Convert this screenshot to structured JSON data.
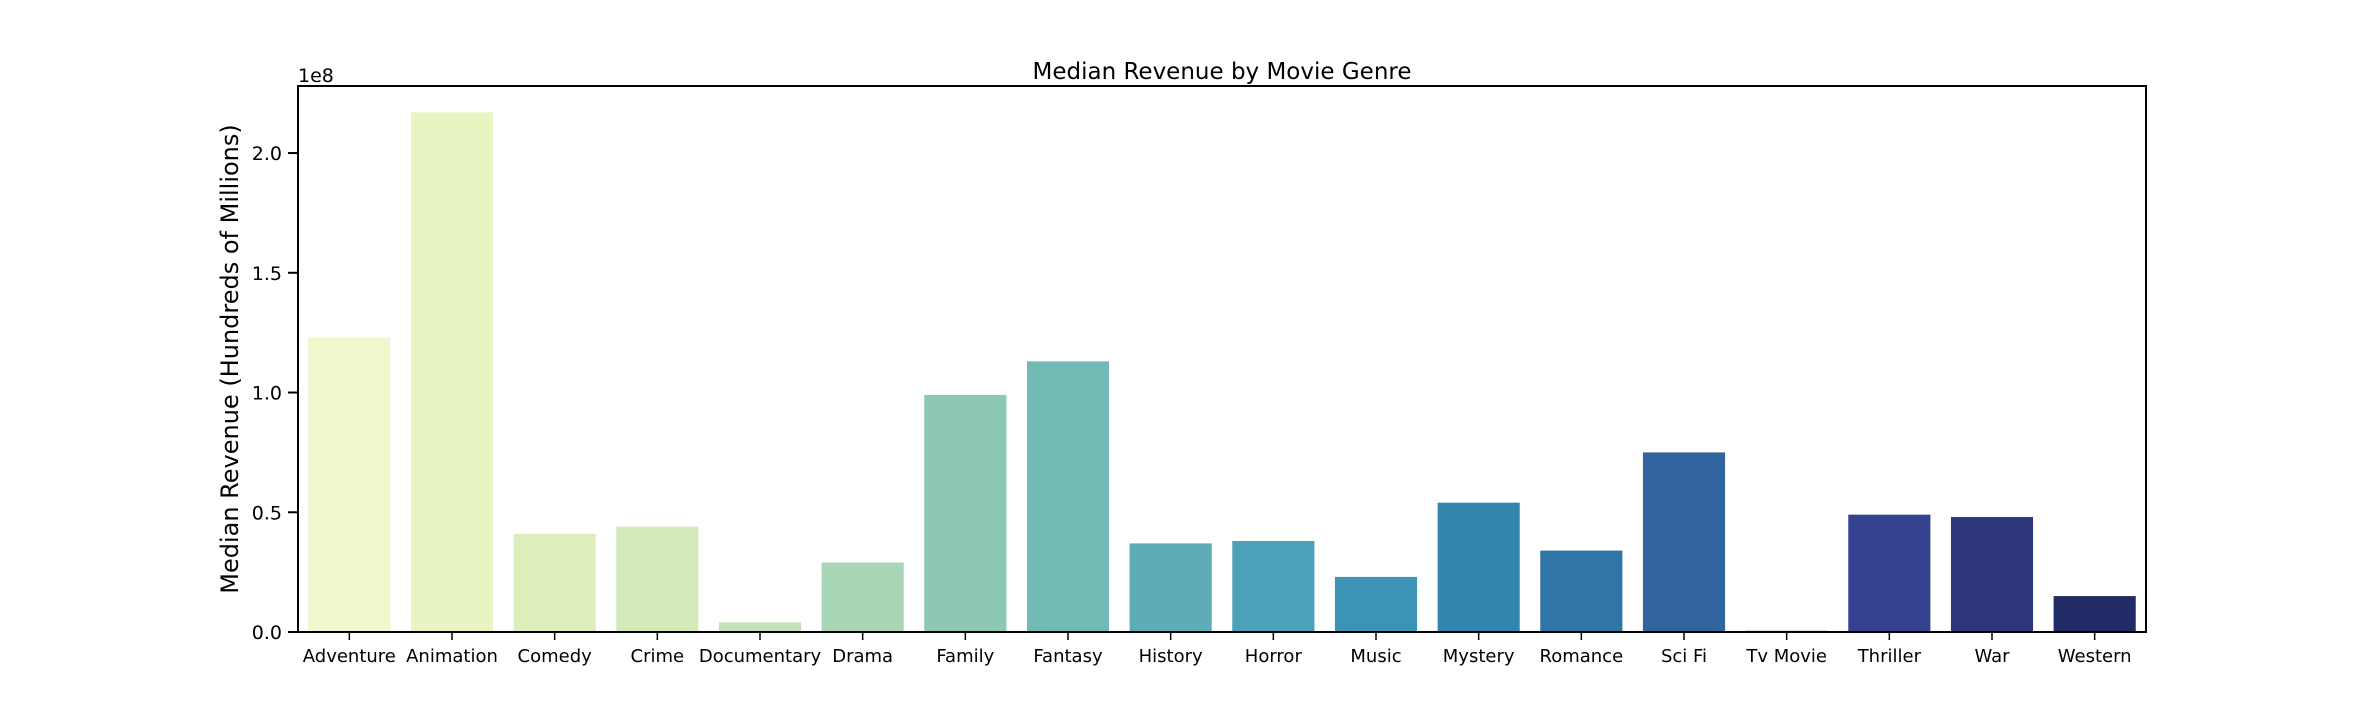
{
  "chart_data": {
    "type": "bar",
    "title": "Median Revenue by Movie Genre",
    "xlabel": "",
    "ylabel": "Median Revenue (Hundreds of Millions)",
    "y_offset_label": "1e8",
    "ylim": [
      0,
      2.28
    ],
    "yticks": [
      "0.0",
      "0.5",
      "1.0",
      "1.5",
      "2.0"
    ],
    "ytick_values": [
      0,
      0.5,
      1.0,
      1.5,
      2.0
    ],
    "grid": false,
    "legend": "none",
    "categories": [
      "Adventure",
      "Animation",
      "Comedy",
      "Crime",
      "Documentary",
      "Drama",
      "Family",
      "Fantasy",
      "History",
      "Horror",
      "Music",
      "Mystery",
      "Romance",
      "Sci Fi",
      "Tv Movie",
      "Thriller",
      "War",
      "Western"
    ],
    "values": [
      1.23,
      2.17,
      0.41,
      0.44,
      0.04,
      0.29,
      0.99,
      1.13,
      0.37,
      0.38,
      0.23,
      0.54,
      0.34,
      0.75,
      0.005,
      0.49,
      0.48,
      0.15
    ],
    "colors": [
      "#f0f7cd",
      "#e8f4c2",
      "#ddedbb",
      "#d3eab8",
      "#c2e3b9",
      "#a8d6b7",
      "#8dc7b5",
      "#73b9b5",
      "#5eacb8",
      "#4ba2b8",
      "#3b94b6",
      "#3286ae",
      "#2f76a7",
      "#31649f",
      "#335098",
      "#33418f",
      "#2e377b",
      "#212c66"
    ]
  }
}
